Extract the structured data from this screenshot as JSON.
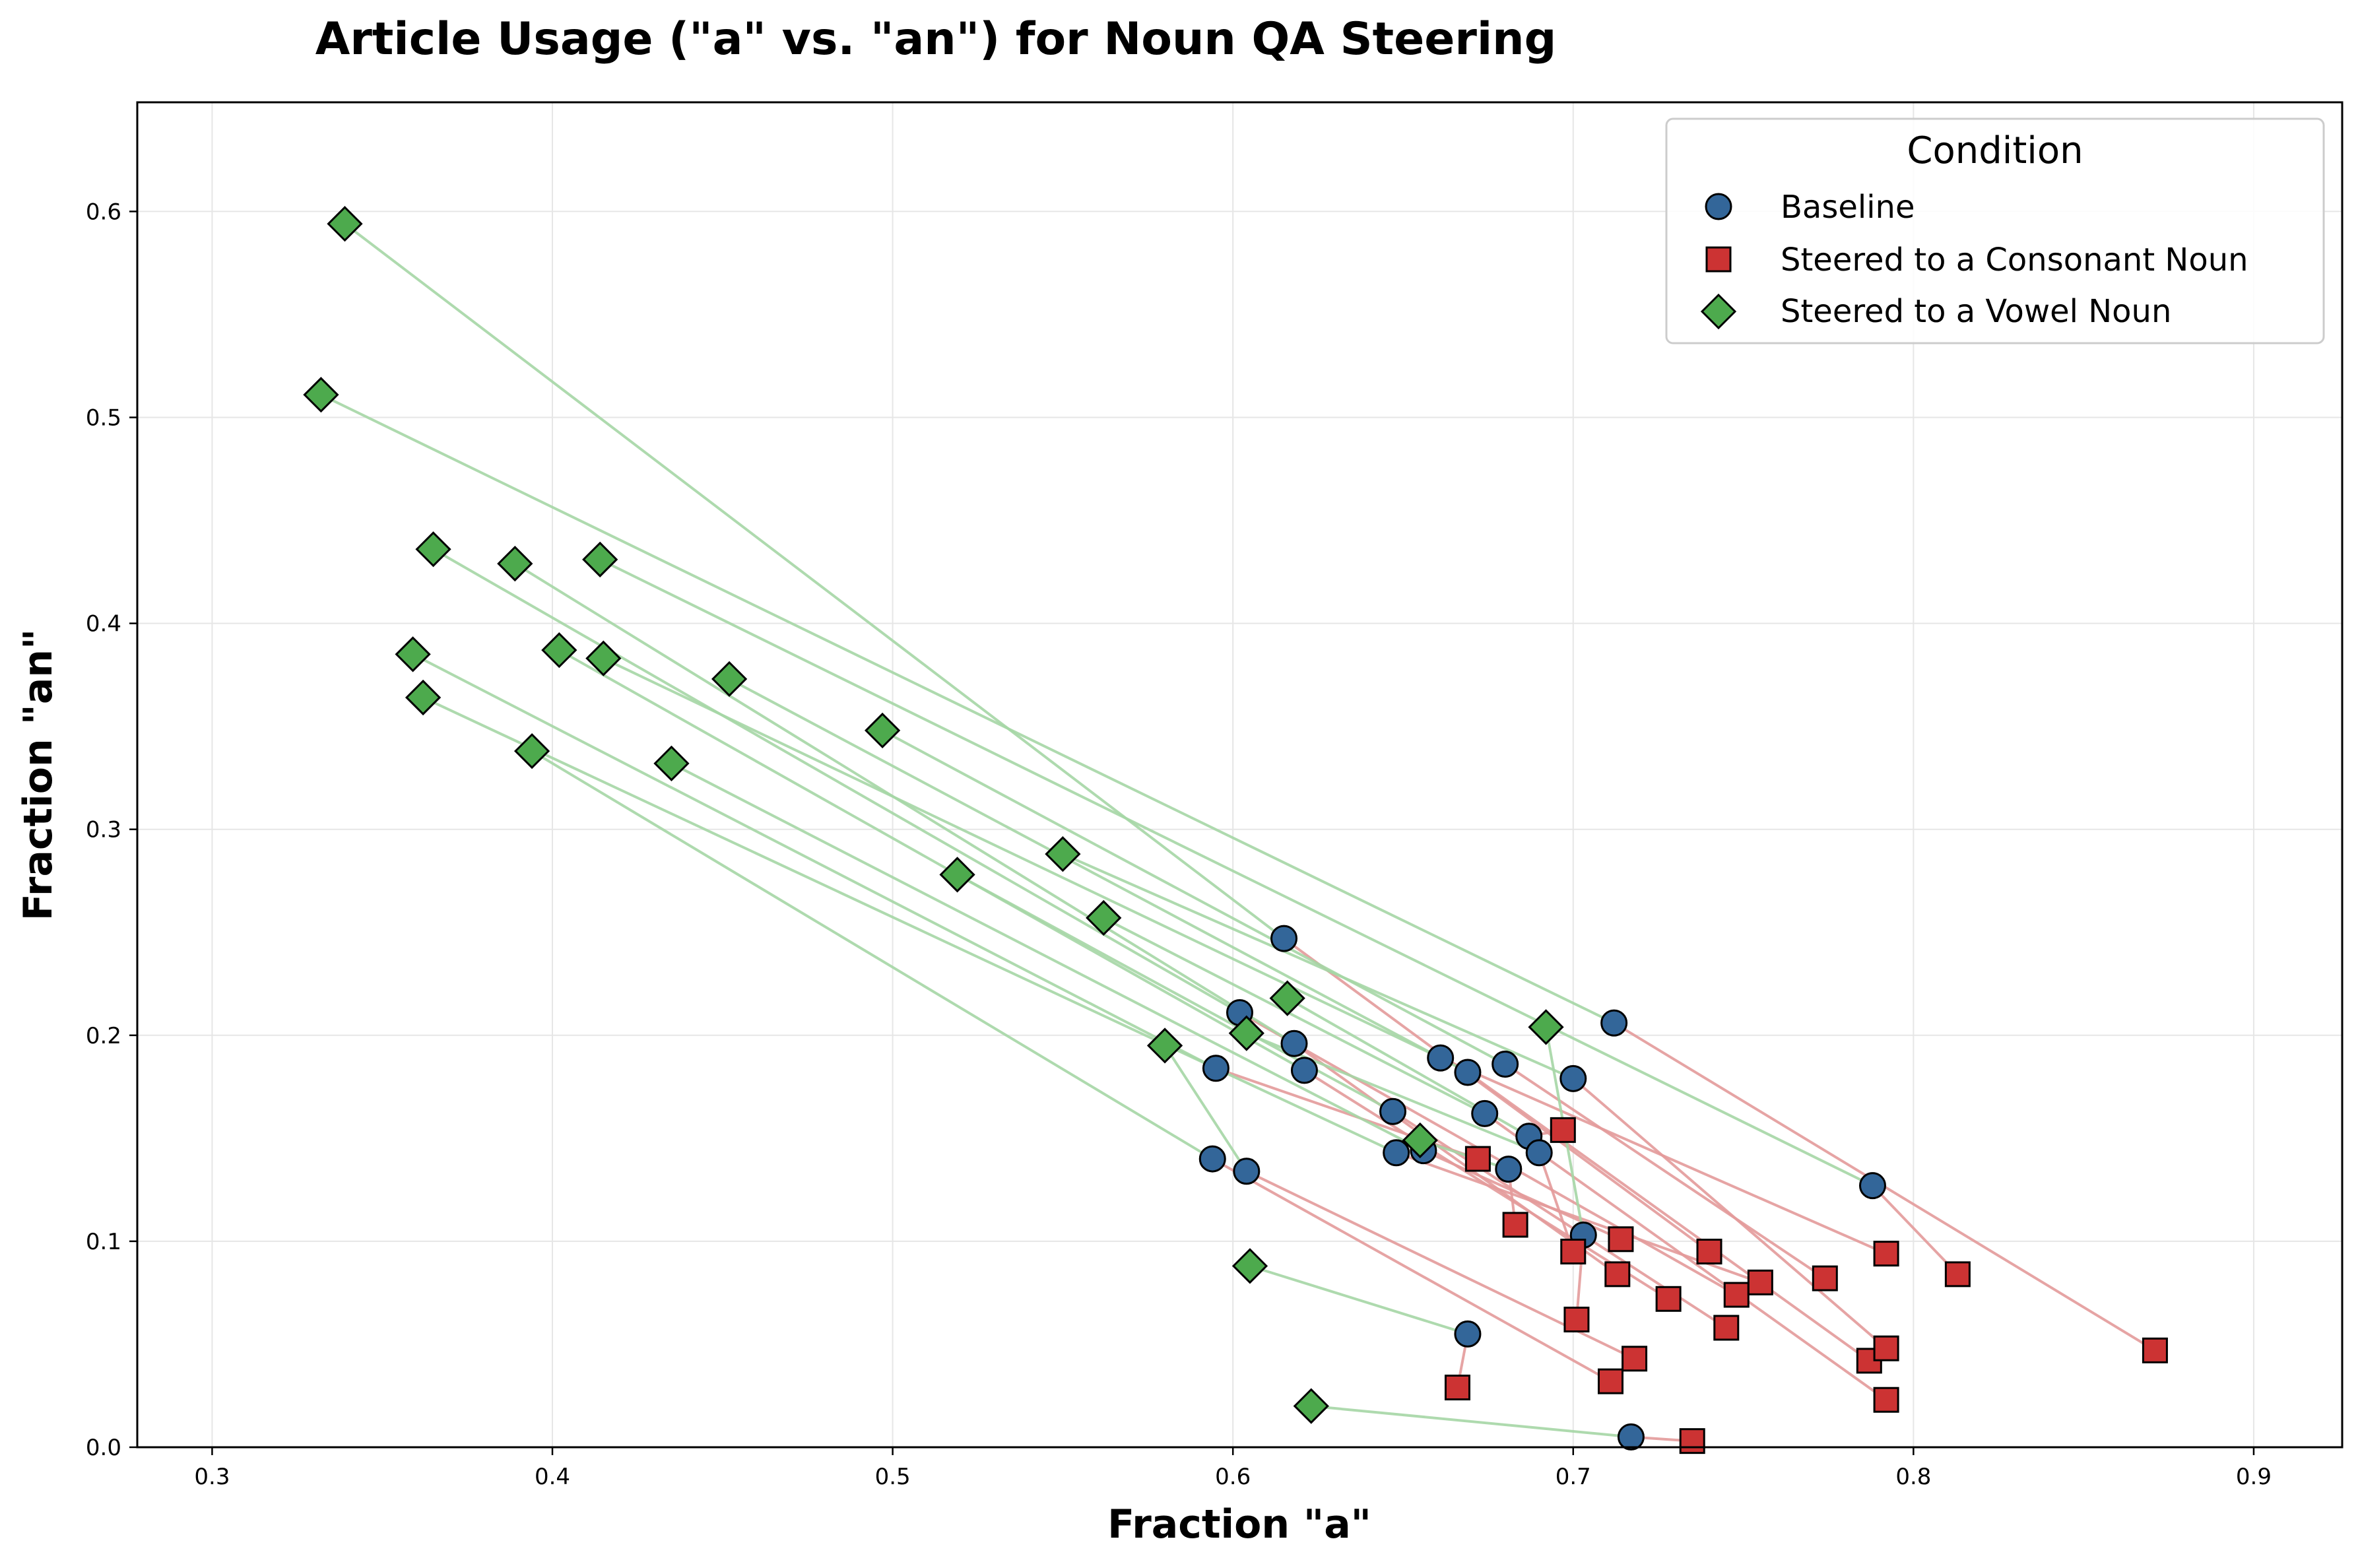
{
  "chart_data": {
    "type": "scatter",
    "title": "Article Usage (\"a\" vs. \"an\") for Noun QA Steering",
    "xlabel": "Fraction \"a\"",
    "ylabel": "Fraction \"an\"",
    "xlim": [
      0.278,
      0.926
    ],
    "ylim": [
      0.0,
      0.653
    ],
    "xticks": [
      0.3,
      0.4,
      0.5,
      0.6,
      0.7,
      0.8,
      0.9
    ],
    "xtick_labels": [
      "0.3",
      "0.4",
      "0.5",
      "0.6",
      "0.7",
      "0.8",
      "0.9"
    ],
    "yticks": [
      0.0,
      0.1,
      0.2,
      0.3,
      0.4,
      0.5,
      0.6
    ],
    "ytick_labels": [
      "0.0",
      "0.1",
      "0.2",
      "0.3",
      "0.4",
      "0.5",
      "0.6"
    ],
    "grid": true,
    "legend": {
      "title": "Condition",
      "position": "top-right",
      "entries": [
        {
          "label": "Baseline",
          "marker": "circle",
          "color": "#336699"
        },
        {
          "label": "Steered to a Consonant Noun",
          "marker": "square",
          "color": "#cc3333"
        },
        {
          "label": "Steered to a Vowel Noun",
          "marker": "diamond",
          "color": "#4daa4d"
        }
      ]
    },
    "colors": {
      "baseline": "#336699",
      "consonant": "#cc3333",
      "vowel": "#4daa4d",
      "consonant_line": "#e39a9a",
      "vowel_line": "#a5d6a5",
      "edge": "#000000"
    },
    "points": [
      {
        "baseline": [
          0.615,
          0.247
        ],
        "consonant": [
          0.74,
          0.095
        ],
        "vowel": [
          0.339,
          0.594
        ]
      },
      {
        "baseline": [
          0.712,
          0.206
        ],
        "consonant": [
          0.871,
          0.047
        ],
        "vowel": [
          0.332,
          0.511
        ]
      },
      {
        "baseline": [
          0.788,
          0.127
        ],
        "consonant": [
          0.813,
          0.084
        ],
        "vowel": [
          0.414,
          0.431
        ]
      },
      {
        "baseline": [
          0.602,
          0.211
        ],
        "consonant": [
          0.748,
          0.074
        ],
        "vowel": [
          0.365,
          0.436
        ]
      },
      {
        "baseline": [
          0.618,
          0.196
        ],
        "consonant": [
          0.713,
          0.084
        ],
        "vowel": [
          0.389,
          0.429
        ]
      },
      {
        "baseline": [
          0.595,
          0.184
        ],
        "consonant": [
          0.672,
          0.14
        ],
        "vowel": [
          0.359,
          0.385
        ]
      },
      {
        "baseline": [
          0.621,
          0.183
        ],
        "consonant": [
          0.728,
          0.072
        ],
        "vowel": [
          0.402,
          0.387
        ]
      },
      {
        "baseline": [
          0.661,
          0.189
        ],
        "consonant": [
          0.792,
          0.094
        ],
        "vowel": [
          0.415,
          0.383
        ]
      },
      {
        "baseline": [
          0.669,
          0.182
        ],
        "consonant": [
          0.787,
          0.042
        ],
        "vowel": [
          0.452,
          0.373
        ]
      },
      {
        "baseline": [
          0.68,
          0.186
        ],
        "consonant": [
          0.774,
          0.082
        ],
        "vowel": [
          0.497,
          0.348
        ]
      },
      {
        "baseline": [
          0.7,
          0.179
        ],
        "consonant": [
          0.792,
          0.048
        ],
        "vowel": [
          0.55,
          0.288
        ]
      },
      {
        "baseline": [
          0.647,
          0.163
        ],
        "consonant": [
          0.745,
          0.058
        ],
        "vowel": [
          0.519,
          0.278
        ]
      },
      {
        "baseline": [
          0.674,
          0.162
        ],
        "consonant": [
          0.792,
          0.023
        ],
        "vowel": [
          0.562,
          0.257
        ]
      },
      {
        "baseline": [
          0.648,
          0.143
        ],
        "consonant": [
          0.755,
          0.08
        ],
        "vowel": [
          0.362,
          0.364
        ]
      },
      {
        "baseline": [
          0.656,
          0.144
        ],
        "consonant": [
          0.714,
          0.101
        ],
        "vowel": [
          0.435,
          0.332
        ]
      },
      {
        "baseline": [
          0.687,
          0.151
        ],
        "consonant": [
          0.697,
          0.154
        ],
        "vowel": [
          0.616,
          0.218
        ]
      },
      {
        "baseline": [
          0.69,
          0.143
        ],
        "consonant": [
          0.7,
          0.095
        ],
        "vowel": [
          0.604,
          0.201
        ]
      },
      {
        "baseline": [
          0.681,
          0.135
        ],
        "consonant": [
          0.683,
          0.108
        ],
        "vowel": [
          0.655,
          0.149
        ]
      },
      {
        "baseline": [
          0.703,
          0.103
        ],
        "consonant": [
          0.701,
          0.062
        ],
        "vowel": [
          0.692,
          0.204
        ]
      },
      {
        "baseline": [
          0.594,
          0.14
        ],
        "consonant": [
          0.711,
          0.032
        ],
        "vowel": [
          0.394,
          0.338
        ]
      },
      {
        "baseline": [
          0.604,
          0.134
        ],
        "consonant": [
          0.718,
          0.043
        ],
        "vowel": [
          0.58,
          0.195
        ]
      },
      {
        "baseline": [
          0.669,
          0.055
        ],
        "consonant": [
          0.666,
          0.029
        ],
        "vowel": [
          0.605,
          0.088
        ]
      },
      {
        "baseline": [
          0.717,
          0.005
        ],
        "consonant": [
          0.735,
          0.003
        ],
        "vowel": [
          0.623,
          0.02
        ]
      }
    ]
  }
}
